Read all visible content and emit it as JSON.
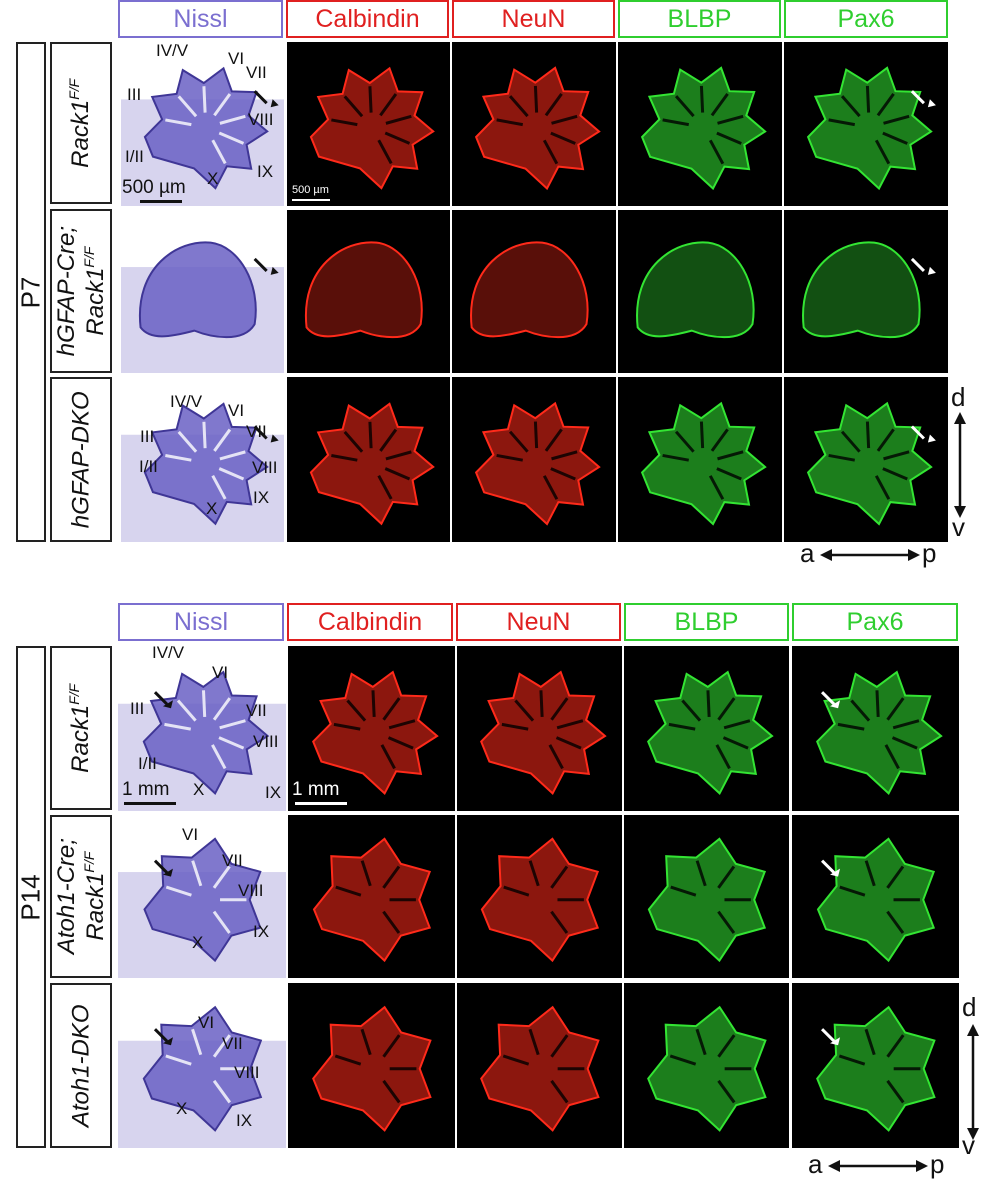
{
  "markers": {
    "nissl": "Nissl",
    "calbindin": "Calbindin",
    "neun": "NeuN",
    "blbp": "BLBP",
    "pax6": "Pax6"
  },
  "colors": {
    "nissl_stain": "#8b84cf",
    "red_stain": "#ff2a1a",
    "green_stain": "#33e533",
    "header_purple": "#7b6fd0",
    "header_red": "#e02020",
    "header_green": "#2fce2f"
  },
  "p7": {
    "age": "P7",
    "genotypes": [
      {
        "base": "Rack1",
        "sup": "F/F"
      },
      {
        "line1": "hGFAP-Cre;",
        "base": "Rack1",
        "sup": "F/F"
      },
      {
        "base": "hGFAP-DKO"
      }
    ],
    "scale_nissl": "500 µm",
    "scale_fluor": "500 µm",
    "lobules_row1": [
      "IV/V",
      "VI",
      "VII",
      "III",
      "VIII",
      "I/II",
      "IX",
      "X"
    ],
    "lobules_row3": [
      "IV/V",
      "VI",
      "VII",
      "III",
      "VIII",
      "I/II",
      "IX",
      "X"
    ]
  },
  "p14": {
    "age": "P14",
    "genotypes": [
      {
        "base": "Rack1",
        "sup": "F/F"
      },
      {
        "line1": "Atoh1-Cre;",
        "base": "Rack1",
        "sup": "F/F"
      },
      {
        "base": "Atoh1-DKO"
      }
    ],
    "scale_nissl": "1 mm",
    "scale_fluor": "1 mm",
    "lobules_row1": [
      "IV/V",
      "VI",
      "VII",
      "III",
      "VIII",
      "I/II",
      "X",
      "IX"
    ],
    "lobules_row2": [
      "VI",
      "VII",
      "VIII",
      "IX",
      "X"
    ],
    "lobules_row3": [
      "VI",
      "VII",
      "VIII",
      "X",
      "IX"
    ]
  },
  "axes": {
    "dorsal": "d",
    "ventral": "v",
    "anterior": "a",
    "posterior": "p"
  }
}
